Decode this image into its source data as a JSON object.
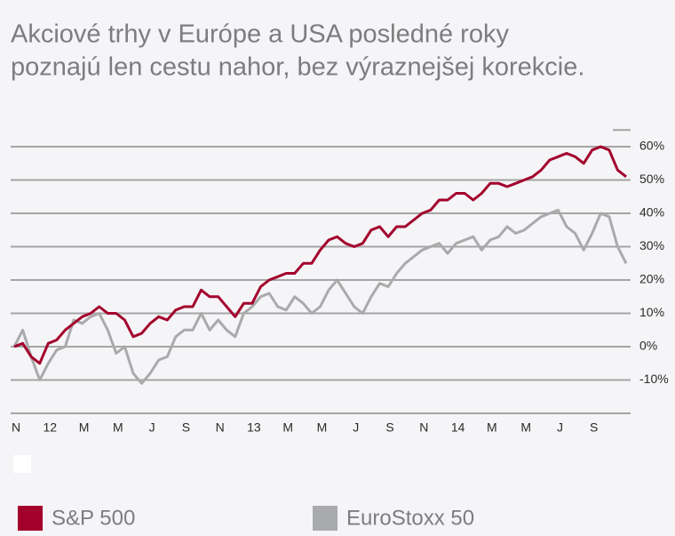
{
  "chart_data": {
    "type": "line",
    "title": [
      "Akciové trhy v Európe a USA posledné roky",
      "poznajú len cestu nahor, bez výraznejšej korekcie."
    ],
    "categories": [
      "N",
      null,
      null,
      null,
      "12",
      null,
      null,
      null,
      "M",
      null,
      null,
      null,
      "M",
      null,
      null,
      null,
      "J",
      null,
      null,
      null,
      "S",
      null,
      null,
      null,
      "N",
      null,
      null,
      null,
      "13",
      null,
      null,
      null,
      "M",
      null,
      null,
      null,
      "M",
      null,
      null,
      null,
      "J",
      null,
      null,
      null,
      "S",
      null,
      null,
      null,
      "N",
      null,
      null,
      null,
      "14",
      null,
      null,
      null,
      "M",
      null,
      null,
      null,
      "M",
      null,
      null,
      null,
      "J",
      null,
      null,
      null,
      "S",
      null,
      null,
      null,
      null
    ],
    "series": [
      {
        "name": "S&P 500",
        "color": "#a3002c",
        "values": [
          0,
          1,
          -3,
          -5,
          1,
          2,
          5,
          7,
          9,
          10,
          12,
          10,
          10,
          8,
          3,
          4,
          7,
          9,
          8,
          11,
          12,
          12,
          17,
          15,
          15,
          12,
          9,
          13,
          13,
          18,
          20,
          21,
          22,
          22,
          25,
          25,
          29,
          32,
          33,
          31,
          30,
          31,
          35,
          36,
          33,
          36,
          36,
          38,
          40,
          41,
          44,
          44,
          46,
          46,
          44,
          46,
          49,
          49,
          48,
          49,
          50,
          51,
          53,
          56,
          57,
          58,
          57,
          55,
          59,
          60,
          59,
          53,
          51
        ]
      },
      {
        "name": "EuroStoxx 50",
        "color": "#a9aaab",
        "values": [
          0,
          5,
          -3,
          -10,
          -5,
          -1,
          0,
          8,
          7,
          9,
          10,
          5,
          -2,
          0,
          -8,
          -11,
          -8,
          -4,
          -3,
          3,
          5,
          5,
          10,
          5,
          8,
          5,
          3,
          10,
          12,
          15,
          16,
          12,
          11,
          15,
          13,
          10,
          12,
          17,
          20,
          16,
          12,
          10,
          15,
          19,
          18,
          22,
          25,
          27,
          29,
          30,
          31,
          28,
          31,
          32,
          33,
          29,
          32,
          33,
          36,
          34,
          35,
          37,
          39,
          40,
          41,
          36,
          34,
          29,
          34,
          40,
          39,
          30,
          25
        ]
      }
    ],
    "ylim": [
      -20,
      65
    ],
    "yticks": [
      {
        "value": -10,
        "label": "-10%"
      },
      {
        "value": 0,
        "label": "0%"
      },
      {
        "value": 10,
        "label": "10%"
      },
      {
        "value": 20,
        "label": "20%"
      },
      {
        "value": 30,
        "label": "30%"
      },
      {
        "value": 40,
        "label": "40%"
      },
      {
        "value": 50,
        "label": "50%"
      },
      {
        "value": 60,
        "label": "60%"
      }
    ],
    "grid": true
  }
}
